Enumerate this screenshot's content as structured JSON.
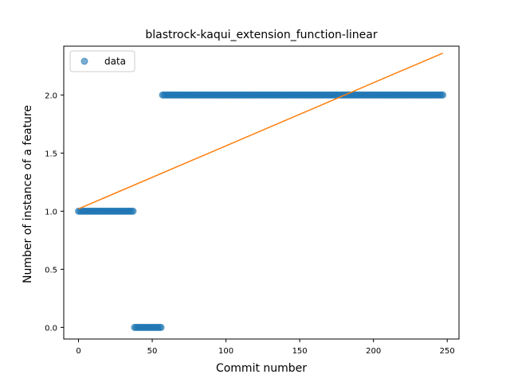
{
  "chart_data": {
    "type": "scatter",
    "title": "blastrock-kaqui_extension_function-linear",
    "xlabel": "Commit number",
    "ylabel": "Number of instance of a feature",
    "xlim": [
      -10,
      258
    ],
    "ylim": [
      -0.1,
      2.42
    ],
    "x_ticks": [
      0,
      50,
      100,
      150,
      200,
      250
    ],
    "x_tick_labels": [
      "0",
      "50",
      "100",
      "150",
      "200",
      "250"
    ],
    "y_ticks": [
      0.0,
      0.5,
      1.0,
      1.5,
      2.0
    ],
    "y_tick_labels": [
      "0.0",
      "0.5",
      "1.0",
      "1.5",
      "2.0"
    ],
    "legend": {
      "position": "top-left",
      "entries": [
        "data"
      ]
    },
    "grid": false,
    "series": [
      {
        "name": "data",
        "kind": "points",
        "color": "#1f77b4",
        "segments": [
          {
            "x_start": 0,
            "x_end": 37,
            "y": 1.0
          },
          {
            "x_start": 38,
            "x_end": 56,
            "y": 0.0
          },
          {
            "x_start": 57,
            "x_end": 247,
            "y": 2.0
          }
        ]
      },
      {
        "kind": "line",
        "color": "#ff7f0e",
        "points": [
          [
            0,
            1.02
          ],
          [
            247,
            2.36
          ]
        ]
      }
    ]
  }
}
